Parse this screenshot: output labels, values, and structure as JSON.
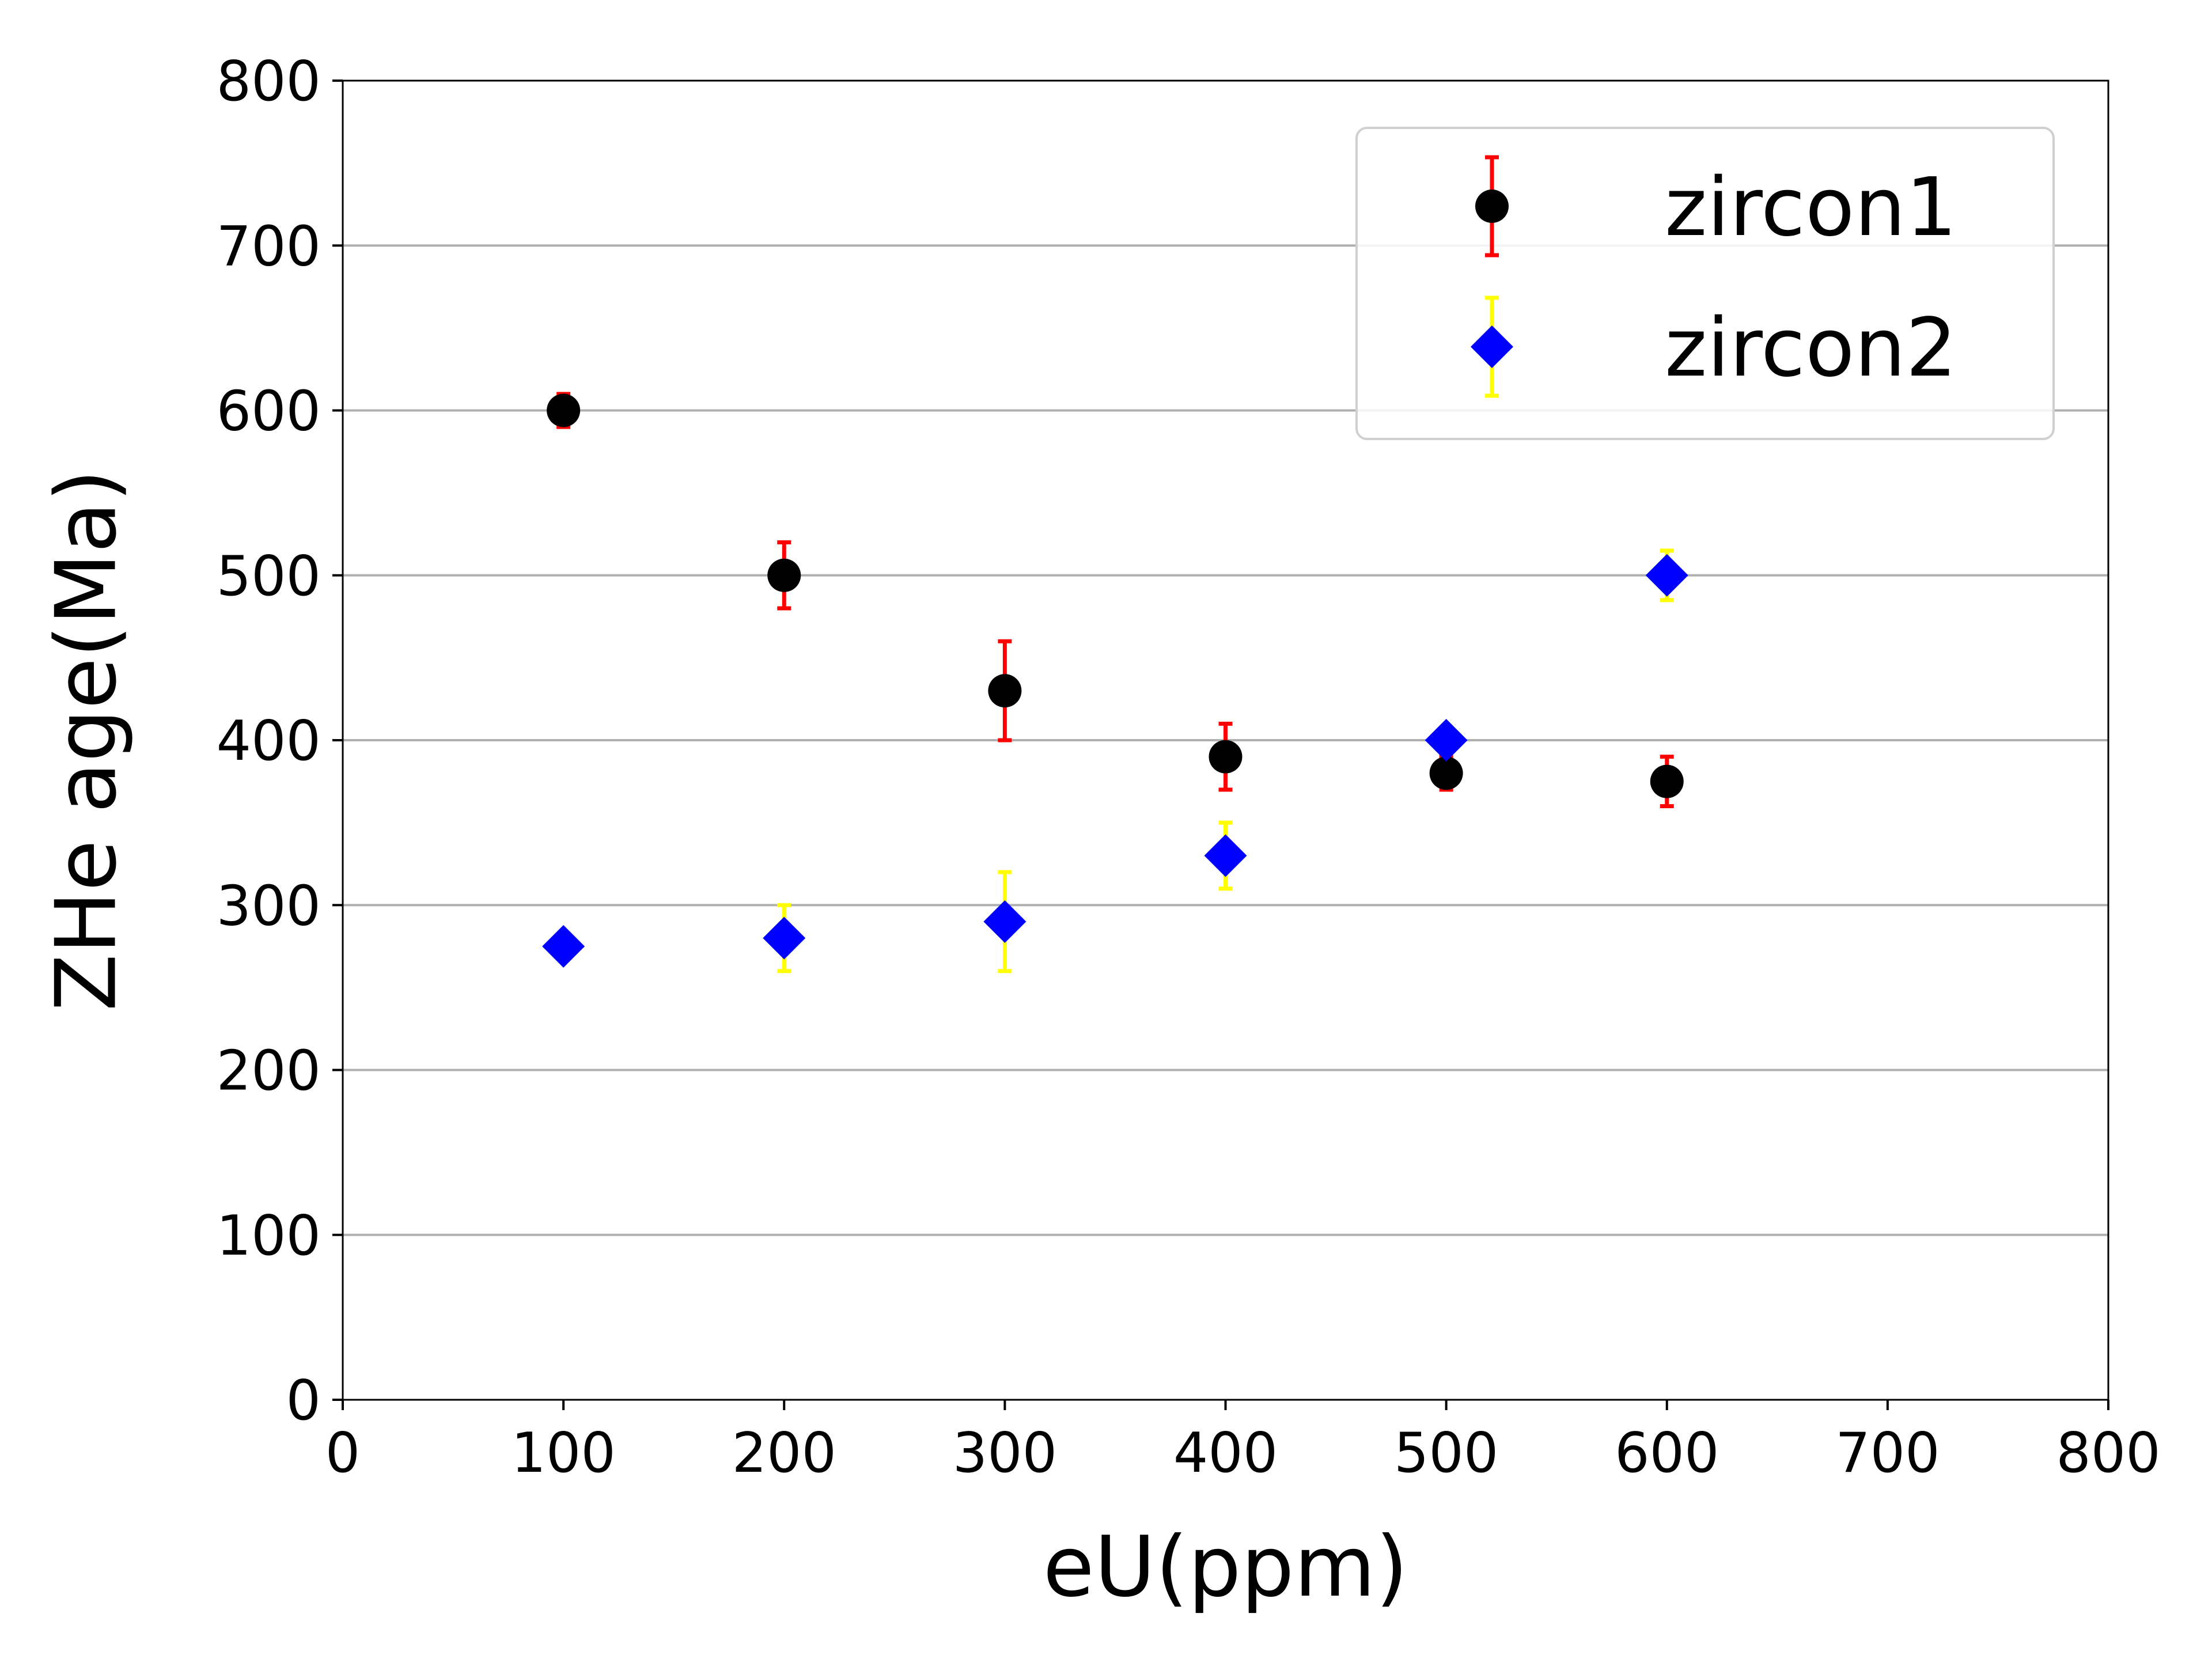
{
  "chart_data": {
    "type": "scatter",
    "title": "",
    "xlabel": "eU(ppm)",
    "ylabel": "ZHe age(Ma)",
    "xlim": [
      0,
      800
    ],
    "ylim": [
      0,
      800
    ],
    "xticks": [
      0,
      100,
      200,
      300,
      400,
      500,
      600,
      700,
      800
    ],
    "yticks": [
      0,
      100,
      200,
      300,
      400,
      500,
      600,
      700,
      800
    ],
    "grid": "horizontal",
    "legend": "top-right",
    "series": [
      {
        "name": "zircon1",
        "marker": "circle",
        "color": "#000000",
        "error_color": "#ff0000",
        "x": [
          100,
          200,
          300,
          400,
          500,
          600
        ],
        "y": [
          600,
          500,
          430,
          390,
          380,
          375
        ],
        "yerr": [
          10,
          20,
          30,
          20,
          10,
          15
        ]
      },
      {
        "name": "zircon2",
        "marker": "diamond",
        "color": "#0000ff",
        "error_color": "#ffff00",
        "x": [
          100,
          200,
          300,
          400,
          500,
          600
        ],
        "y": [
          275,
          280,
          290,
          330,
          400,
          500
        ],
        "yerr": [
          5,
          20,
          30,
          20,
          5,
          15
        ]
      }
    ]
  }
}
